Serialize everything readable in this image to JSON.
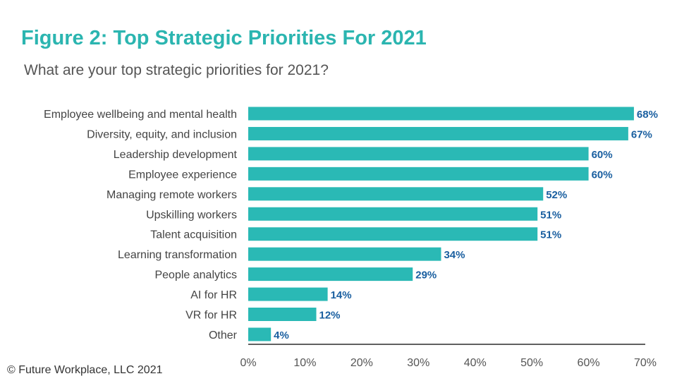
{
  "chart_data": {
    "type": "bar",
    "orientation": "horizontal",
    "title": "Figure 2: Top Strategic Priorities For 2021",
    "subtitle": "What are your top strategic priorities for 2021?",
    "categories": [
      "Employee wellbeing and mental health",
      "Diversity, equity, and inclusion",
      "Leadership development",
      "Employee experience",
      "Managing remote workers",
      "Upskilling workers",
      "Talent acquisition",
      "Learning transformation",
      "People analytics",
      "AI for HR",
      "VR for HR",
      "Other"
    ],
    "values": [
      68,
      67,
      60,
      60,
      52,
      51,
      51,
      34,
      29,
      14,
      12,
      4
    ],
    "data_labels": [
      "68%",
      "67%",
      "60%",
      "60%",
      "52%",
      "51%",
      "51%",
      "34%",
      "29%",
      "14%",
      "12%",
      "4%"
    ],
    "xlim": [
      0,
      70
    ],
    "x_ticks": [
      "0%",
      "10%",
      "20%",
      "30%",
      "40%",
      "50%",
      "60%",
      "70%"
    ],
    "grid": false,
    "colors": {
      "bar": "#2ab9b5",
      "label": "#1a5fa0",
      "title": "#2bb5b0"
    }
  },
  "footer": "© Future Workplace, LLC 2021"
}
